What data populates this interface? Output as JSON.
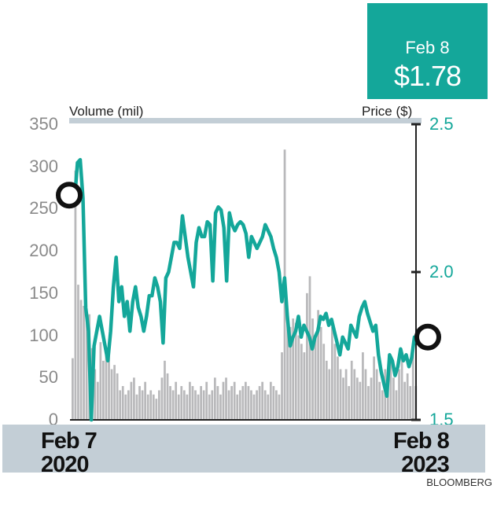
{
  "callout": {
    "date": "Feb 8",
    "price": "$1.78"
  },
  "volume_axis_title": "Volume (mil)",
  "price_axis_title": "Price ($)",
  "source": "BLOOMBERG",
  "x_start": {
    "line1": "Feb 7",
    "line2": "2020"
  },
  "x_end": {
    "line1": "Feb 8",
    "line2": "2023"
  },
  "colors": {
    "price_line": "#14a79a",
    "volume_bars": "#b9b9bb",
    "band": "#c3ced6",
    "top_rule": "#c3ced6"
  },
  "chart_data": {
    "type": "line",
    "x_range": [
      "2020-02-07",
      "2023-02-08"
    ],
    "volume_axis": {
      "label": "Volume (mil)",
      "ylim": [
        0,
        350
      ],
      "ticks": [
        0,
        50,
        100,
        150,
        200,
        250,
        300,
        350
      ]
    },
    "price_axis": {
      "label": "Price ($)",
      "ylim": [
        1.5,
        2.5
      ],
      "ticks": [
        "1.5",
        "2.0",
        "2.5"
      ]
    },
    "price_series": {
      "values": [
        2.25,
        2.37,
        2.38,
        2.25,
        1.88,
        1.8,
        1.5,
        1.75,
        1.8,
        1.85,
        1.8,
        1.75,
        1.7,
        1.8,
        1.95,
        2.05,
        1.9,
        1.95,
        1.85,
        1.9,
        1.8,
        1.9,
        1.95,
        1.88,
        1.85,
        1.8,
        1.85,
        1.92,
        1.92,
        1.98,
        1.95,
        1.9,
        1.76,
        1.98,
        2.0,
        2.05,
        2.1,
        2.1,
        2.08,
        2.19,
        2.12,
        2.05,
        2.0,
        1.95,
        2.1,
        2.15,
        2.12,
        2.12,
        2.17,
        2.16,
        1.97,
        2.2,
        2.22,
        2.21,
        2.15,
        1.97,
        2.2,
        2.16,
        2.14,
        2.16,
        2.17,
        2.16,
        2.13,
        2.05,
        2.12,
        2.1,
        2.08,
        2.1,
        2.12,
        2.16,
        2.14,
        2.12,
        2.08,
        2.05,
        2.0,
        1.9,
        1.98,
        1.85,
        1.75,
        1.78,
        1.8,
        1.85,
        1.78,
        1.82,
        1.8,
        1.78,
        1.74,
        1.78,
        1.8,
        1.85,
        1.84,
        1.86,
        1.82,
        1.84,
        1.8,
        1.76,
        1.72,
        1.78,
        1.76,
        1.74,
        1.82,
        1.8,
        1.78,
        1.85,
        1.88,
        1.9,
        1.86,
        1.83,
        1.8,
        1.82,
        1.72,
        1.66,
        1.62,
        1.58,
        1.72,
        1.7,
        1.65,
        1.68,
        1.74,
        1.7,
        1.72,
        1.68,
        1.71,
        1.78
      ]
    },
    "volume_series": {
      "values": [
        73,
        295,
        160,
        142,
        135,
        130,
        125,
        85,
        60,
        45,
        92,
        70,
        80,
        85,
        60,
        65,
        55,
        35,
        40,
        30,
        35,
        45,
        50,
        30,
        40,
        35,
        45,
        30,
        35,
        30,
        25,
        35,
        50,
        70,
        55,
        40,
        35,
        45,
        30,
        40,
        35,
        30,
        45,
        40,
        35,
        30,
        40,
        35,
        45,
        30,
        35,
        50,
        40,
        30,
        45,
        50,
        35,
        40,
        45,
        30,
        35,
        40,
        45,
        40,
        35,
        30,
        35,
        40,
        45,
        35,
        30,
        45,
        40,
        35,
        30,
        80,
        320,
        130,
        110,
        120,
        115,
        100,
        90,
        80,
        150,
        170,
        120,
        100,
        130,
        110,
        90,
        70,
        60,
        110,
        90,
        75,
        60,
        50,
        60,
        40,
        70,
        60,
        50,
        45,
        80,
        60,
        40,
        50,
        75,
        60,
        45,
        35,
        60,
        40,
        70,
        50,
        35,
        60,
        80,
        45,
        55,
        40,
        85,
        40
      ]
    },
    "markers": [
      {
        "date": "2020-02-07",
        "price": 2.26
      },
      {
        "date": "2023-02-08",
        "price": 1.78
      }
    ]
  }
}
